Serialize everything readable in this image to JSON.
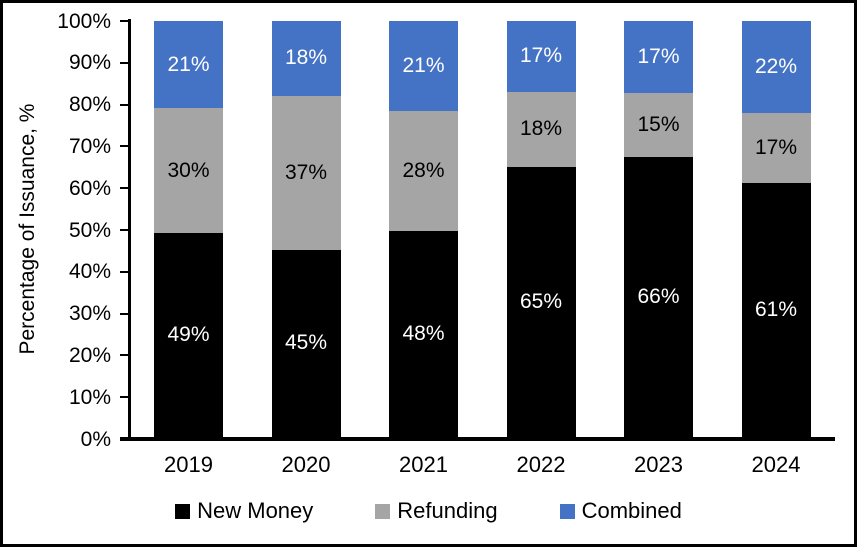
{
  "chart_data": {
    "type": "bar",
    "stacked": true,
    "normalized_to_100_percent": true,
    "title": "",
    "ylabel": "Percentage of Issuance, %",
    "xlabel": "",
    "categories": [
      "2019",
      "2020",
      "2021",
      "2022",
      "2023",
      "2024"
    ],
    "series": [
      {
        "name": "New Money",
        "color": "#000000",
        "label_color": "#FFFFFF",
        "values": [
          49,
          45,
          48,
          65,
          66,
          61
        ]
      },
      {
        "name": "Refunding",
        "color": "#A5A5A5",
        "label_color": "#000000",
        "values": [
          30,
          37,
          28,
          18,
          15,
          17
        ]
      },
      {
        "name": "Combined",
        "color": "#4472C4",
        "label_color": "#FFFFFF",
        "values": [
          21,
          18,
          21,
          17,
          17,
          22
        ]
      }
    ],
    "data_label_suffix": "%",
    "y_ticks": [
      "0%",
      "10%",
      "20%",
      "30%",
      "40%",
      "50%",
      "60%",
      "70%",
      "80%",
      "90%",
      "100%"
    ],
    "ylim": [
      0,
      100
    ],
    "grid": false,
    "legend_position": "bottom",
    "axis_color": "#000000",
    "background_color": "#FFFFFF"
  }
}
